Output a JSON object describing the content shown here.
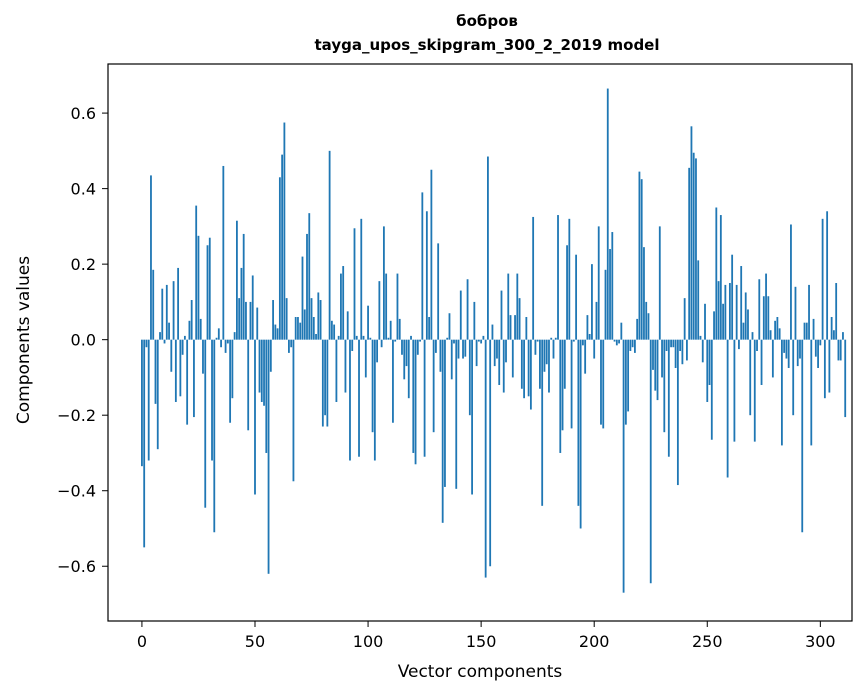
{
  "chart_data": {
    "type": "bar",
    "title": "бобров",
    "subtitle": "tayga_upos_skipgram_300_2_2019 model",
    "xlabel": "Vector components",
    "ylabel": "Components values",
    "xlim": [
      -15,
      314
    ],
    "ylim": [
      -0.745,
      0.73
    ],
    "xticks": [
      0,
      50,
      100,
      150,
      200,
      250,
      300
    ],
    "yticks": [
      -0.6,
      -0.4,
      -0.2,
      0.0,
      0.2,
      0.4,
      0.6
    ],
    "xtick_labels": [
      "0",
      "50",
      "100",
      "150",
      "200",
      "250",
      "300"
    ],
    "ytick_labels": [
      "−0.6",
      "−0.4",
      "−0.2",
      "0.0",
      "0.2",
      "0.4",
      "0.6"
    ],
    "grid": false,
    "legend": false,
    "color": "#1f77b4",
    "values": [
      -0.335,
      -0.55,
      -0.02,
      -0.32,
      0.435,
      0.185,
      -0.17,
      -0.29,
      0.02,
      0.135,
      -0.01,
      0.145,
      0.045,
      -0.085,
      0.155,
      -0.165,
      0.19,
      -0.15,
      -0.04,
      0.01,
      -0.225,
      0.05,
      0.105,
      -0.205,
      0.355,
      0.275,
      0.055,
      -0.09,
      -0.445,
      0.25,
      0.27,
      -0.32,
      -0.51,
      0.005,
      0.03,
      -0.02,
      0.46,
      -0.035,
      -0.01,
      -0.22,
      -0.155,
      0.02,
      0.315,
      0.11,
      0.19,
      0.28,
      0.1,
      -0.24,
      0.1,
      0.17,
      -0.41,
      0.085,
      -0.14,
      -0.165,
      -0.175,
      -0.3,
      -0.62,
      -0.085,
      0.105,
      0.04,
      0.03,
      0.43,
      0.49,
      0.575,
      0.11,
      -0.035,
      -0.02,
      -0.375,
      0.06,
      0.06,
      0.045,
      0.22,
      0.08,
      0.28,
      0.335,
      0.11,
      0.06,
      0.015,
      0.125,
      0.105,
      -0.23,
      -0.2,
      -0.23,
      0.5,
      0.05,
      0.04,
      -0.165,
      0.01,
      0.175,
      0.195,
      -0.14,
      0.075,
      -0.32,
      -0.03,
      0.295,
      0.01,
      -0.31,
      0.32,
      0.01,
      -0.1,
      0.09,
      0.005,
      -0.245,
      -0.32,
      -0.06,
      0.155,
      -0.02,
      0.3,
      0.175,
      0.005,
      0.05,
      -0.22,
      -0.005,
      0.175,
      0.055,
      -0.04,
      -0.105,
      -0.07,
      -0.155,
      0.01,
      -0.3,
      -0.33,
      -0.04,
      -0.005,
      0.39,
      -0.31,
      0.34,
      0.06,
      0.45,
      -0.245,
      -0.035,
      0.255,
      -0.085,
      -0.485,
      -0.39,
      0.005,
      0.07,
      -0.105,
      -0.01,
      -0.395,
      -0.05,
      0.13,
      -0.05,
      -0.045,
      0.16,
      -0.2,
      -0.41,
      0.1,
      -0.07,
      -0.005,
      -0.01,
      0.01,
      -0.63,
      0.485,
      -0.6,
      0.04,
      -0.07,
      -0.05,
      -0.12,
      0.13,
      -0.14,
      -0.06,
      0.175,
      0.065,
      -0.1,
      0.065,
      0.175,
      0.11,
      -0.13,
      -0.155,
      0.06,
      -0.15,
      -0.185,
      0.325,
      -0.04,
      -0.005,
      -0.13,
      -0.44,
      -0.085,
      -0.065,
      -0.14,
      0.005,
      -0.05,
      0.005,
      0.33,
      -0.3,
      -0.24,
      -0.13,
      0.25,
      0.32,
      -0.235,
      -0.005,
      0.225,
      -0.44,
      -0.5,
      -0.015,
      -0.09,
      0.065,
      0.015,
      0.2,
      -0.05,
      0.1,
      0.3,
      -0.225,
      -0.235,
      0.185,
      0.665,
      0.24,
      0.285,
      -0.005,
      -0.015,
      -0.01,
      0.045,
      -0.67,
      -0.225,
      -0.19,
      -0.03,
      -0.02,
      -0.035,
      0.055,
      0.445,
      0.425,
      0.245,
      0.1,
      0.07,
      -0.645,
      -0.08,
      -0.135,
      -0.16,
      0.3,
      -0.1,
      -0.245,
      -0.03,
      -0.31,
      -0.02,
      -0.02,
      -0.075,
      -0.385,
      -0.03,
      -0.065,
      0.11,
      -0.055,
      0.455,
      0.565,
      0.495,
      0.48,
      0.21,
      0.01,
      -0.06,
      0.095,
      -0.165,
      -0.12,
      -0.265,
      0.075,
      0.35,
      0.155,
      0.33,
      0.095,
      0.145,
      -0.365,
      0.15,
      0.225,
      -0.27,
      0.145,
      -0.025,
      0.195,
      0.045,
      0.125,
      0.08,
      -0.2,
      0.02,
      -0.27,
      -0.03,
      0.16,
      -0.12,
      0.115,
      0.175,
      0.115,
      0.025,
      -0.1,
      0.05,
      0.06,
      0.03,
      -0.28,
      -0.035,
      -0.05,
      -0.075,
      0.305,
      -0.2,
      0.14,
      -0.07,
      -0.05,
      -0.51,
      0.045,
      0.045,
      0.145,
      -0.28,
      0.055,
      -0.045,
      -0.075,
      -0.015,
      0.32,
      -0.155,
      0.34,
      -0.14,
      0.06,
      0.025,
      0.15,
      -0.055,
      -0.055,
      0.02,
      -0.205
    ],
    "x_note": ""
  }
}
